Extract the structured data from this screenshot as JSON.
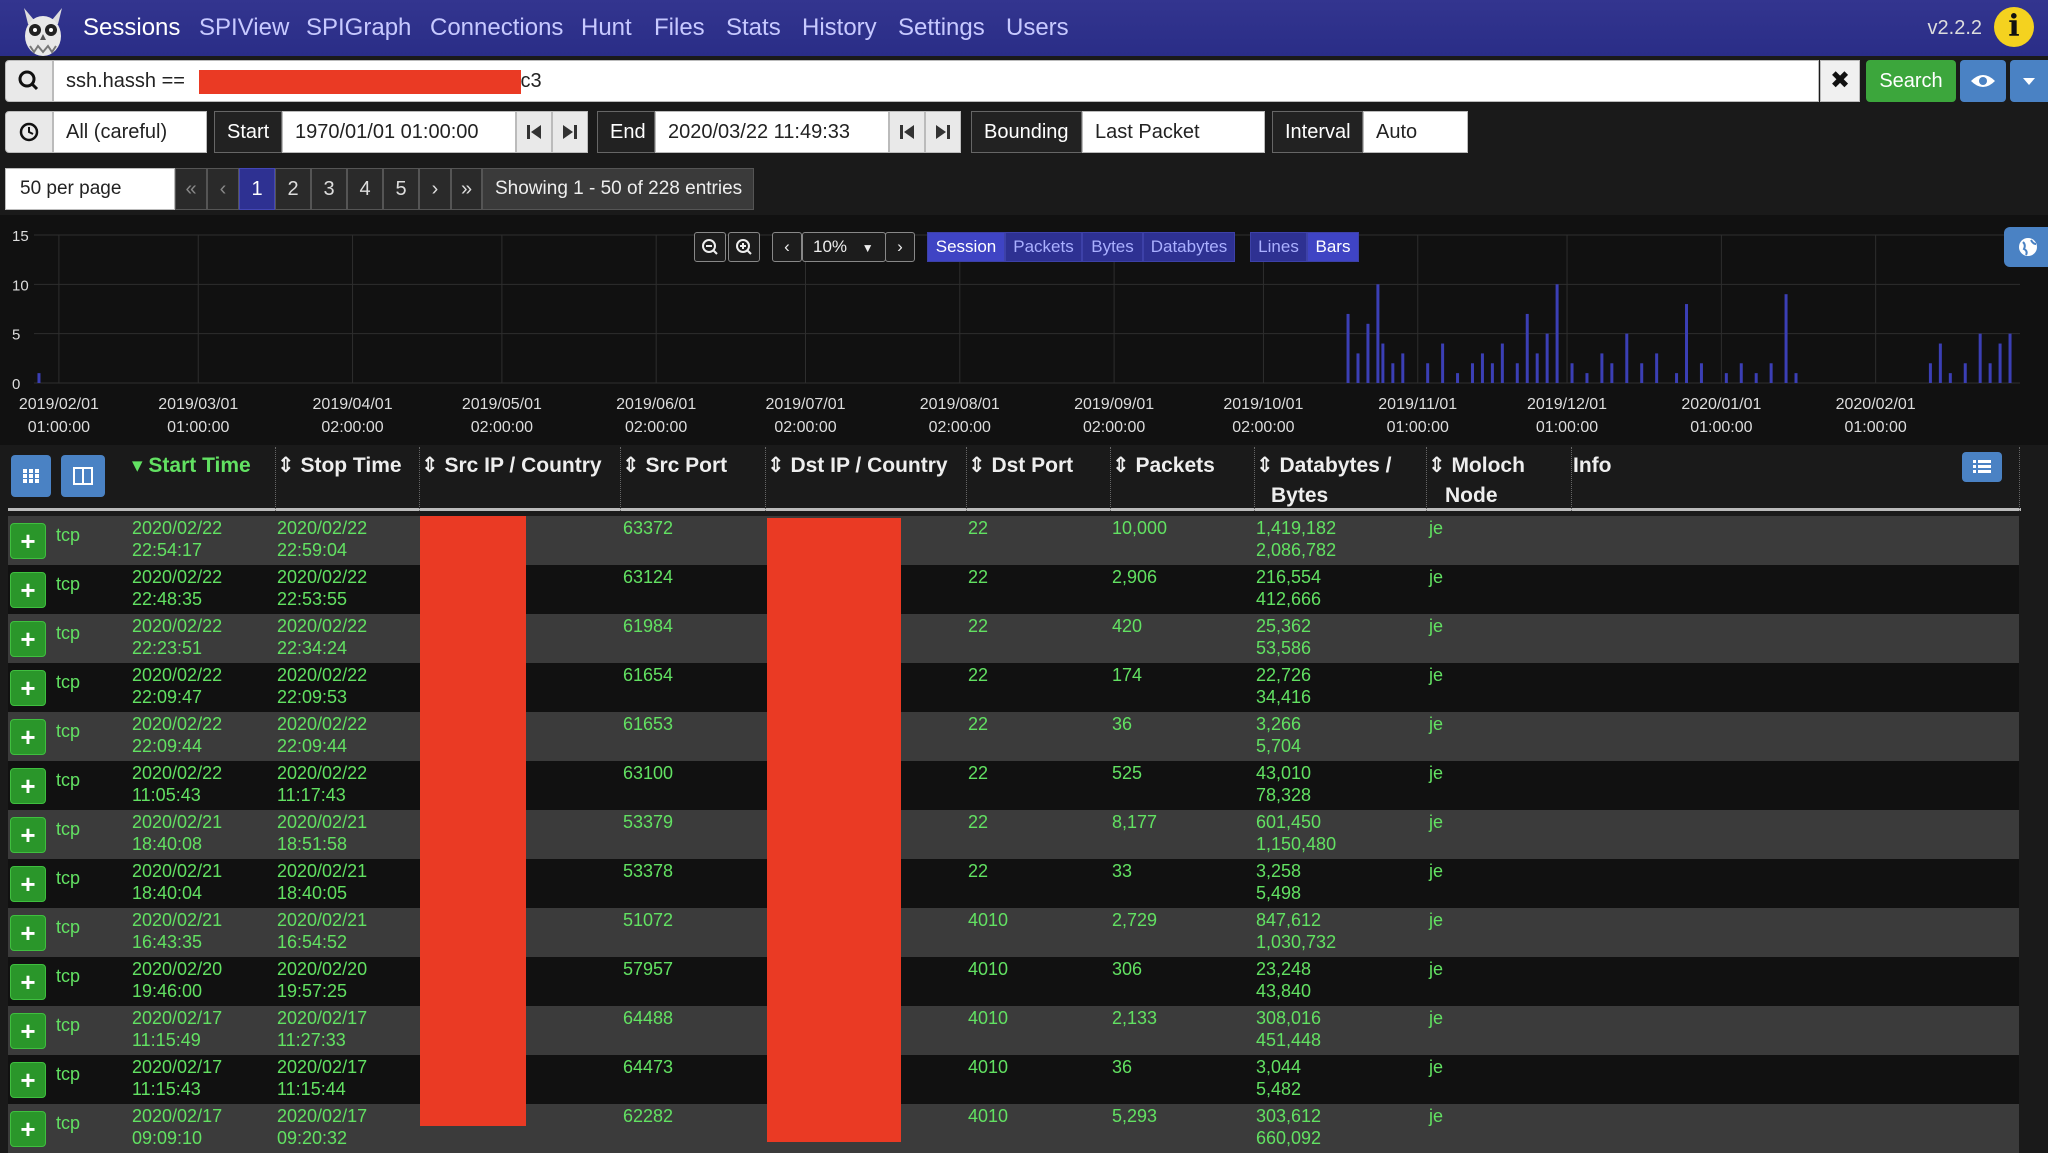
{
  "nav": {
    "items": [
      "Sessions",
      "SPIView",
      "SPIGraph",
      "Connections",
      "Hunt",
      "Files",
      "Stats",
      "History",
      "Settings",
      "Users"
    ],
    "version": "v2.2.2"
  },
  "search": {
    "expression_prefix": "ssh.hassh ==",
    "expression_suffix": "c3",
    "button_label": "Search"
  },
  "time": {
    "range_select": "All (careful)",
    "start_label": "Start",
    "start_value": "1970/01/01 01:00:00",
    "end_label": "End",
    "end_value": "2020/03/22 11:49:33",
    "bounding_label": "Bounding",
    "bounding_value": "Last Packet",
    "interval_label": "Interval",
    "interval_value": "Auto"
  },
  "pagination": {
    "per_page": "50 per page",
    "first": "«",
    "prev": "‹",
    "pages": [
      "1",
      "2",
      "3",
      "4",
      "5"
    ],
    "next": "›",
    "last": "»",
    "showing": "Showing 1 - 50 of 228 entries"
  },
  "graph_controls": {
    "zoom": "10%",
    "metrics": [
      "Session",
      "Packets",
      "Bytes",
      "Databytes"
    ],
    "active_metric": "Session",
    "styles": [
      "Lines",
      "Bars"
    ],
    "active_style": "Bars"
  },
  "chart_data": {
    "type": "bar",
    "y_ticks": [
      "15",
      "10",
      "5",
      "0"
    ],
    "ylim": [
      0,
      15
    ],
    "x_ticks": [
      {
        "date": "2019/02/01",
        "time": "01:00:00"
      },
      {
        "date": "2019/03/01",
        "time": "01:00:00"
      },
      {
        "date": "2019/04/01",
        "time": "02:00:00"
      },
      {
        "date": "2019/05/01",
        "time": "02:00:00"
      },
      {
        "date": "2019/06/01",
        "time": "02:00:00"
      },
      {
        "date": "2019/07/01",
        "time": "02:00:00"
      },
      {
        "date": "2019/08/01",
        "time": "02:00:00"
      },
      {
        "date": "2019/09/01",
        "time": "02:00:00"
      },
      {
        "date": "2019/10/01",
        "time": "02:00:00"
      },
      {
        "date": "2019/11/01",
        "time": "01:00:00"
      },
      {
        "date": "2019/12/01",
        "time": "01:00:00"
      },
      {
        "date": "2020/01/01",
        "time": "01:00:00"
      },
      {
        "date": "2020/02/01",
        "time": "01:00:00"
      }
    ],
    "series": [
      {
        "color": "#3b3fb5",
        "points": [
          {
            "x": "2019/01/28",
            "y": 1
          },
          {
            "x": "2019/10/18",
            "y": 7
          },
          {
            "x": "2019/10/20",
            "y": 3
          },
          {
            "x": "2019/10/22",
            "y": 6
          },
          {
            "x": "2019/10/24",
            "y": 10
          },
          {
            "x": "2019/10/25",
            "y": 4
          },
          {
            "x": "2019/10/27",
            "y": 2
          },
          {
            "x": "2019/10/29",
            "y": 3
          },
          {
            "x": "2019/11/03",
            "y": 2
          },
          {
            "x": "2019/11/06",
            "y": 4
          },
          {
            "x": "2019/11/09",
            "y": 1
          },
          {
            "x": "2019/11/12",
            "y": 2
          },
          {
            "x": "2019/11/14",
            "y": 3
          },
          {
            "x": "2019/11/16",
            "y": 2
          },
          {
            "x": "2019/11/18",
            "y": 4
          },
          {
            "x": "2019/11/21",
            "y": 2
          },
          {
            "x": "2019/11/23",
            "y": 7
          },
          {
            "x": "2019/11/25",
            "y": 3
          },
          {
            "x": "2019/11/27",
            "y": 5
          },
          {
            "x": "2019/11/29",
            "y": 10
          },
          {
            "x": "2019/12/02",
            "y": 2
          },
          {
            "x": "2019/12/05",
            "y": 1
          },
          {
            "x": "2019/12/08",
            "y": 3
          },
          {
            "x": "2019/12/10",
            "y": 2
          },
          {
            "x": "2019/12/13",
            "y": 5
          },
          {
            "x": "2019/12/16",
            "y": 2
          },
          {
            "x": "2019/12/19",
            "y": 3
          },
          {
            "x": "2019/12/23",
            "y": 1
          },
          {
            "x": "2019/12/25",
            "y": 8
          },
          {
            "x": "2019/12/28",
            "y": 2
          },
          {
            "x": "2020/01/02",
            "y": 1
          },
          {
            "x": "2020/01/05",
            "y": 2
          },
          {
            "x": "2020/01/08",
            "y": 1
          },
          {
            "x": "2020/01/11",
            "y": 2
          },
          {
            "x": "2020/01/14",
            "y": 9
          },
          {
            "x": "2020/01/16",
            "y": 1
          },
          {
            "x": "2020/02/12",
            "y": 2
          },
          {
            "x": "2020/02/14",
            "y": 4
          },
          {
            "x": "2020/02/16",
            "y": 1
          },
          {
            "x": "2020/02/19",
            "y": 2
          },
          {
            "x": "2020/02/22",
            "y": 5
          },
          {
            "x": "2020/02/24",
            "y": 2
          },
          {
            "x": "2020/02/26",
            "y": 4
          },
          {
            "x": "2020/02/28",
            "y": 5
          }
        ]
      }
    ]
  },
  "table": {
    "columns": [
      "Start Time",
      "Stop Time",
      "Src IP / Country",
      "Src Port",
      "Dst IP / Country",
      "Dst Port",
      "Packets",
      "Databytes /",
      "Bytes",
      "Moloch",
      "Node",
      "Info"
    ],
    "rows": [
      {
        "protocol": "tcp",
        "start_date": "2020/02/22",
        "start_time": "22:54:17",
        "stop_date": "2020/02/22",
        "stop_time": "22:59:04",
        "src_port": "63372",
        "dst_port": "22",
        "packets": "10,000",
        "databytes": "1,419,182",
        "bytes": "2,086,782",
        "node": "je"
      },
      {
        "protocol": "tcp",
        "start_date": "2020/02/22",
        "start_time": "22:48:35",
        "stop_date": "2020/02/22",
        "stop_time": "22:53:55",
        "src_port": "63124",
        "dst_port": "22",
        "packets": "2,906",
        "databytes": "216,554",
        "bytes": "412,666",
        "node": "je"
      },
      {
        "protocol": "tcp",
        "start_date": "2020/02/22",
        "start_time": "22:23:51",
        "stop_date": "2020/02/22",
        "stop_time": "22:34:24",
        "src_port": "61984",
        "dst_port": "22",
        "packets": "420",
        "databytes": "25,362",
        "bytes": "53,586",
        "node": "je"
      },
      {
        "protocol": "tcp",
        "start_date": "2020/02/22",
        "start_time": "22:09:47",
        "stop_date": "2020/02/22",
        "stop_time": "22:09:53",
        "src_port": "61654",
        "dst_port": "22",
        "packets": "174",
        "databytes": "22,726",
        "bytes": "34,416",
        "node": "je"
      },
      {
        "protocol": "tcp",
        "start_date": "2020/02/22",
        "start_time": "22:09:44",
        "stop_date": "2020/02/22",
        "stop_time": "22:09:44",
        "src_port": "61653",
        "dst_port": "22",
        "packets": "36",
        "databytes": "3,266",
        "bytes": "5,704",
        "node": "je"
      },
      {
        "protocol": "tcp",
        "start_date": "2020/02/22",
        "start_time": "11:05:43",
        "stop_date": "2020/02/22",
        "stop_time": "11:17:43",
        "src_port": "63100",
        "dst_port": "22",
        "packets": "525",
        "databytes": "43,010",
        "bytes": "78,328",
        "node": "je"
      },
      {
        "protocol": "tcp",
        "start_date": "2020/02/21",
        "start_time": "18:40:08",
        "stop_date": "2020/02/21",
        "stop_time": "18:51:58",
        "src_port": "53379",
        "dst_port": "22",
        "packets": "8,177",
        "databytes": "601,450",
        "bytes": "1,150,480",
        "node": "je"
      },
      {
        "protocol": "tcp",
        "start_date": "2020/02/21",
        "start_time": "18:40:04",
        "stop_date": "2020/02/21",
        "stop_time": "18:40:05",
        "src_port": "53378",
        "dst_port": "22",
        "packets": "33",
        "databytes": "3,258",
        "bytes": "5,498",
        "node": "je"
      },
      {
        "protocol": "tcp",
        "start_date": "2020/02/21",
        "start_time": "16:43:35",
        "stop_date": "2020/02/21",
        "stop_time": "16:54:52",
        "src_port": "51072",
        "dst_port": "4010",
        "packets": "2,729",
        "databytes": "847,612",
        "bytes": "1,030,732",
        "node": "je"
      },
      {
        "protocol": "tcp",
        "start_date": "2020/02/20",
        "start_time": "19:46:00",
        "stop_date": "2020/02/20",
        "stop_time": "19:57:25",
        "src_port": "57957",
        "dst_port": "4010",
        "packets": "306",
        "databytes": "23,248",
        "bytes": "43,840",
        "node": "je"
      },
      {
        "protocol": "tcp",
        "start_date": "2020/02/17",
        "start_time": "11:15:49",
        "stop_date": "2020/02/17",
        "stop_time": "11:27:33",
        "src_port": "64488",
        "dst_port": "4010",
        "packets": "2,133",
        "databytes": "308,016",
        "bytes": "451,448",
        "node": "je"
      },
      {
        "protocol": "tcp",
        "start_date": "2020/02/17",
        "start_time": "11:15:43",
        "stop_date": "2020/02/17",
        "stop_time": "11:15:44",
        "src_port": "64473",
        "dst_port": "4010",
        "packets": "36",
        "databytes": "3,044",
        "bytes": "5,482",
        "node": "je"
      },
      {
        "protocol": "tcp",
        "start_date": "2020/02/17",
        "start_time": "09:09:10",
        "stop_date": "2020/02/17",
        "stop_time": "09:20:32",
        "src_port": "62282",
        "dst_port": "4010",
        "packets": "5,293",
        "databytes": "303,612",
        "bytes": "660,092",
        "node": "je"
      }
    ]
  },
  "colors": {
    "navbar": "#2e3192",
    "accent_blue": "#4a82c4",
    "search_green": "#3ca63c",
    "data_green": "#62e162",
    "redaction": "#ea3a24",
    "info_yellow": "#f4d21f",
    "bar_color": "#3b3fb5"
  },
  "icons": [
    "moloch-owl-logo",
    "info-icon",
    "search-icon",
    "clear-icon",
    "eye-icon",
    "caret-down-icon",
    "clock-icon",
    "skip-start-icon",
    "skip-end-icon",
    "zoom-out-icon",
    "zoom-in-icon",
    "chevron-left-icon",
    "chevron-right-icon",
    "globe-icon",
    "grid-icon",
    "split-view-icon",
    "column-list-icon",
    "plus-icon"
  ]
}
